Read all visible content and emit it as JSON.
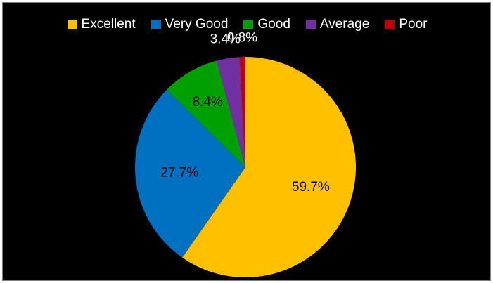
{
  "chart_data": {
    "type": "pie",
    "title": "",
    "legend_position": "top",
    "background": "#000000",
    "slices": [
      {
        "name": "Excellent",
        "value": 59.7,
        "label": "59.7%",
        "color": "#ffc000",
        "label_color": "#000000"
      },
      {
        "name": "Very Good",
        "value": 27.7,
        "label": "27.7%",
        "color": "#0070c0",
        "label_color": "#000000"
      },
      {
        "name": "Good",
        "value": 8.4,
        "label": "8.4%",
        "color": "#00a000",
        "label_color": "#000000"
      },
      {
        "name": "Average",
        "value": 3.4,
        "label": "3.4%",
        "color": "#7030a0",
        "label_color": "#ffffff"
      },
      {
        "name": "Poor",
        "value": 0.8,
        "label": "0.8%",
        "color": "#c00000",
        "label_color": "#ffffff"
      }
    ]
  }
}
